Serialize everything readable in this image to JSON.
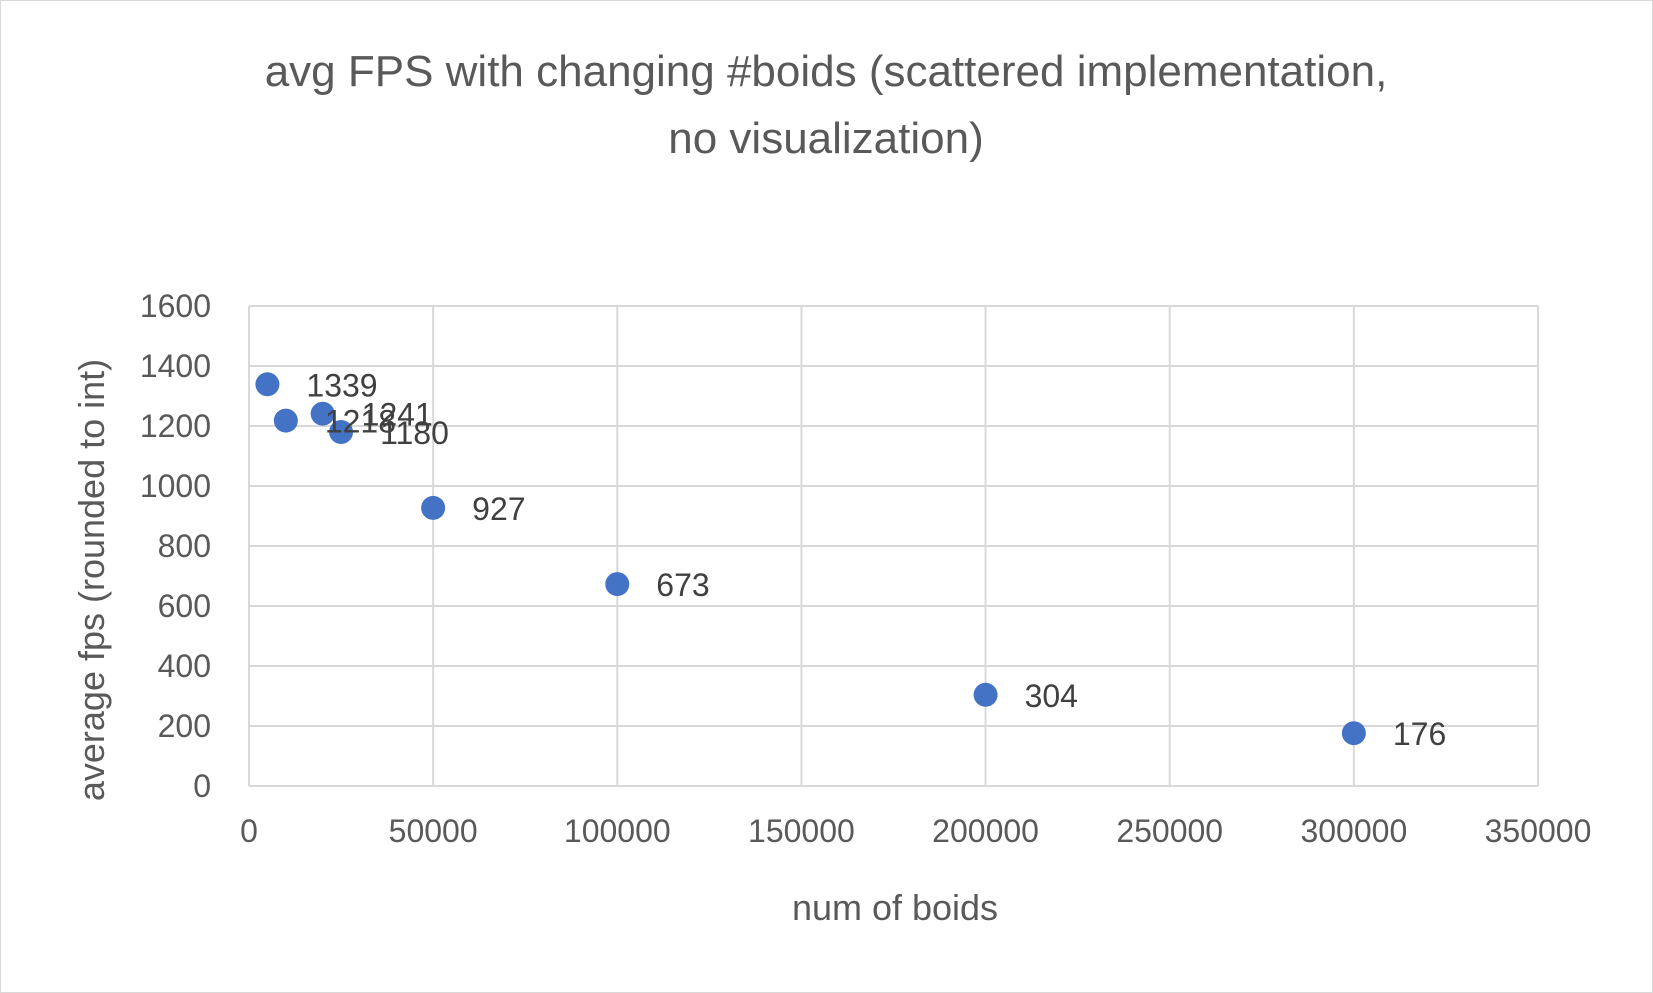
{
  "chart_data": {
    "type": "scatter",
    "title_lines": [
      "avg FPS with changing #boids (scattered implementation,",
      "no visualization)"
    ],
    "xlabel": "num of boids",
    "ylabel": "average fps (rounded to int)",
    "xlim": [
      0,
      350000
    ],
    "ylim": [
      0,
      1600
    ],
    "x_ticks": [
      "0",
      "50000",
      "100000",
      "150000",
      "200000",
      "250000",
      "300000",
      "350000"
    ],
    "y_ticks": [
      "0",
      "200",
      "400",
      "600",
      "800",
      "1000",
      "1200",
      "1400",
      "1600"
    ],
    "grid": true,
    "legend": "none",
    "marker_color": "#4472c4",
    "series": [
      {
        "points": [
          {
            "x": 5000,
            "y": 1339,
            "label": "1339"
          },
          {
            "x": 10000,
            "y": 1218,
            "label": "1218"
          },
          {
            "x": 20000,
            "y": 1241,
            "label": "1241"
          },
          {
            "x": 25000,
            "y": 1180,
            "label": "1180"
          },
          {
            "x": 50000,
            "y": 927,
            "label": "927"
          },
          {
            "x": 100000,
            "y": 673,
            "label": "673"
          },
          {
            "x": 200000,
            "y": 304,
            "label": "304"
          },
          {
            "x": 300000,
            "y": 176,
            "label": "176"
          }
        ]
      }
    ]
  }
}
